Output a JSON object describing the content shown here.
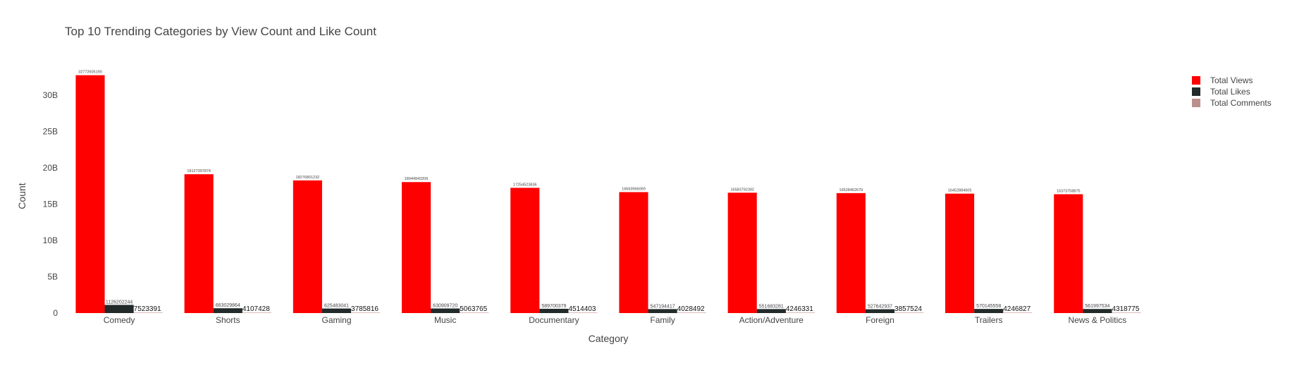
{
  "chart_data": {
    "type": "bar",
    "title": "Top 10 Trending Categories by View Count and Like Count",
    "xlabel": "Category",
    "ylabel": "Count",
    "categories": [
      "Comedy",
      "Shorts",
      "Gaming",
      "Music",
      "Documentary",
      "Family",
      "Action/Adventure",
      "Foreign",
      "Trailers",
      "News & Politics"
    ],
    "series": [
      {
        "name": "Total Views",
        "color": "#ff0000",
        "values": [
          32772605190,
          19127397874,
          18276801232,
          18044943206,
          17254523836,
          16663966069,
          16583792392,
          16528452679,
          16452884605,
          16373758875
        ]
      },
      {
        "name": "Total Likes",
        "color": "#222a2a",
        "values": [
          1126202244,
          663029864,
          625483041,
          630909720,
          589700379,
          547194417,
          551683281,
          527642937,
          570145558,
          561997534
        ]
      },
      {
        "name": "Total Comments",
        "color": "#bc8f8f",
        "values": [
          7523391,
          4107428,
          3785816,
          5063765,
          4514403,
          4028492,
          4246331,
          3857524,
          4246827,
          4318775
        ]
      }
    ],
    "ylim": [
      0,
      34000000000
    ],
    "yticks": [
      0,
      5000000000,
      10000000000,
      15000000000,
      20000000000,
      25000000000,
      30000000000
    ],
    "ytick_labels": [
      "0",
      "5B",
      "10B",
      "15B",
      "20B",
      "25B",
      "30B"
    ],
    "grid": false,
    "legend": "top-right"
  }
}
